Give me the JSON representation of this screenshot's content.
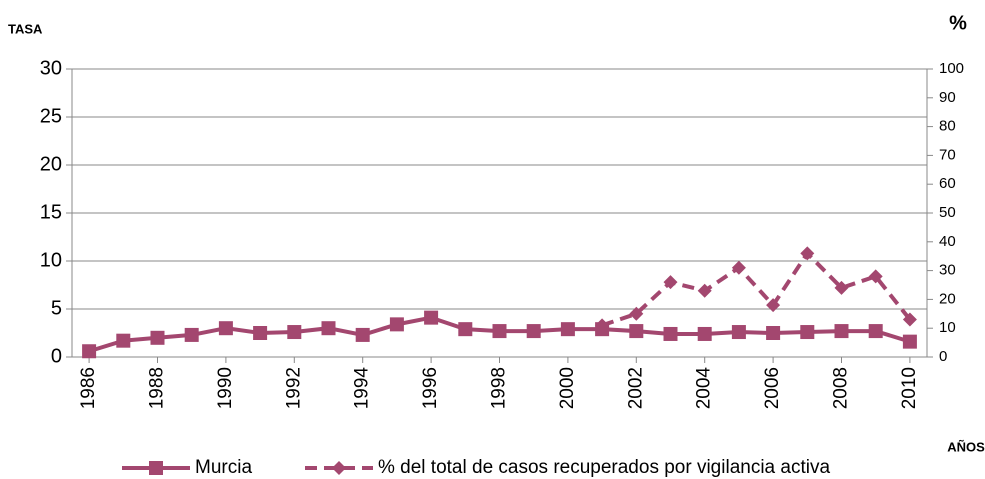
{
  "chart_data": {
    "type": "line",
    "y_label": "TASA",
    "y2_label": "%",
    "x_label": "AÑOS",
    "x": [
      1986,
      1987,
      1988,
      1989,
      1990,
      1991,
      1992,
      1993,
      1994,
      1995,
      1996,
      1997,
      1998,
      1999,
      2000,
      2001,
      2002,
      2003,
      2004,
      2005,
      2006,
      2007,
      2008,
      2009,
      2010
    ],
    "xlim": [
      1985.5,
      2010.5
    ],
    "xticks": [
      1986,
      1988,
      1990,
      1992,
      1994,
      1996,
      1998,
      2000,
      2002,
      2004,
      2006,
      2008,
      2010
    ],
    "ylim": [
      0,
      30
    ],
    "yticks": [
      0,
      5,
      10,
      15,
      20,
      25,
      30
    ],
    "y2lim": [
      0,
      100
    ],
    "y2ticks": [
      0,
      10,
      20,
      30,
      40,
      50,
      60,
      70,
      80,
      90,
      100
    ],
    "grid": true,
    "series": [
      {
        "name": "Murcia",
        "color": "#a3476f",
        "dash": false,
        "marker": "square",
        "values": [
          0.6,
          1.7,
          2.0,
          2.3,
          3.0,
          2.5,
          2.6,
          3.0,
          2.3,
          3.4,
          4.1,
          2.9,
          2.7,
          2.7,
          2.9,
          2.9,
          2.7,
          2.4,
          2.4,
          2.6,
          2.5,
          2.6,
          2.7,
          2.7,
          1.6
        ]
      },
      {
        "name": "% del total de casos recuperados por vigilancia activa",
        "color": "#a3476f",
        "dash": true,
        "marker": "diamond",
        "axis": "y2",
        "values": [
          null,
          null,
          null,
          null,
          null,
          null,
          null,
          null,
          null,
          null,
          null,
          null,
          null,
          null,
          null,
          11,
          15,
          26,
          23,
          31,
          18,
          36,
          24,
          28,
          13
        ]
      }
    ]
  }
}
